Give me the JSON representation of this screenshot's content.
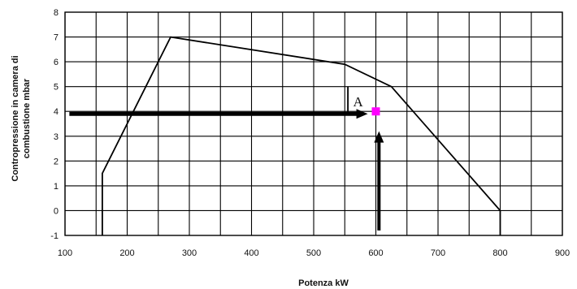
{
  "chart_data": {
    "type": "line",
    "title": "",
    "xlabel": "Potenza kW",
    "ylabel_line1": "Contropressione in camera di",
    "ylabel_line2": "combustione mbar",
    "xlim": [
      100,
      900
    ],
    "ylim": [
      -1,
      8
    ],
    "x_ticks": [
      100,
      200,
      300,
      400,
      500,
      600,
      700,
      800,
      900
    ],
    "y_ticks": [
      -1,
      0,
      1,
      2,
      3,
      4,
      5,
      6,
      7,
      8
    ],
    "x_minor_step": 50,
    "grid": true,
    "series": [
      {
        "color": "#000000",
        "points": [
          [
            160,
            -1
          ],
          [
            160,
            1.5
          ],
          [
            270,
            7
          ],
          [
            550,
            5.9
          ],
          [
            625,
            5
          ],
          [
            800,
            0
          ],
          [
            800,
            -1
          ]
        ]
      }
    ],
    "annotations": {
      "point_label": "A",
      "point": [
        600,
        4
      ],
      "point_color": "#ff00ff",
      "bracket": {
        "x": 555,
        "y_from": 4,
        "y_to": 5
      },
      "horizontal_arrow": {
        "from": [
          107,
          3.9
        ],
        "to": [
          587,
          3.9
        ]
      },
      "vertical_arrow": {
        "from": [
          605,
          -0.8
        ],
        "to": [
          605,
          3.2
        ]
      }
    }
  }
}
